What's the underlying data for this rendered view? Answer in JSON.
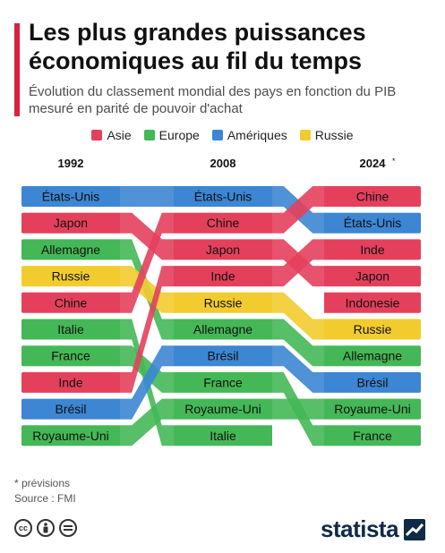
{
  "header": {
    "title": "Les plus grandes puissances économiques au fil du temps",
    "subtitle": "Évolution du classement mondial des pays en fonction du PIB mesuré en parité de pouvoir d'achat"
  },
  "colors": {
    "Asie": "#e4405c",
    "Europe": "#44b856",
    "Amériques": "#3c86d3",
    "Russie": "#f2cc2e",
    "accent": "#d7233b",
    "brand": "#0f2a47"
  },
  "chart_data": {
    "type": "bump",
    "legend": [
      {
        "name": "Asie",
        "color": "#e4405c"
      },
      {
        "name": "Europe",
        "color": "#44b856"
      },
      {
        "name": "Amériques",
        "color": "#3c86d3"
      },
      {
        "name": "Russie",
        "color": "#f2cc2e"
      }
    ],
    "legend_position": "top",
    "years": [
      "1992",
      "2008",
      "2024"
    ],
    "year_note": "*",
    "rankings": [
      [
        "États-Unis",
        "Japon",
        "Allemagne",
        "Russie",
        "Chine",
        "Italie",
        "France",
        "Inde",
        "Brésil",
        "Royaume-Uni"
      ],
      [
        "États-Unis",
        "Chine",
        "Japon",
        "Inde",
        "Russie",
        "Allemagne",
        "Brésil",
        "France",
        "Royaume-Uni",
        "Italie"
      ],
      [
        "Chine",
        "États-Unis",
        "Inde",
        "Japon",
        "Indonesie",
        "Russie",
        "Allemagne",
        "Brésil",
        "Royaume-Uni",
        "France"
      ]
    ],
    "regions": {
      "États-Unis": "Amériques",
      "Brésil": "Amériques",
      "Japon": "Asie",
      "Chine": "Asie",
      "Inde": "Asie",
      "Indonesie": "Asie",
      "Allemagne": "Europe",
      "Italie": "Europe",
      "France": "Europe",
      "Royaume-Uni": "Europe",
      "Russie": "Russie"
    }
  },
  "footer": {
    "note": "* prévisions",
    "source": "Source : FMI",
    "brand": "statista"
  }
}
